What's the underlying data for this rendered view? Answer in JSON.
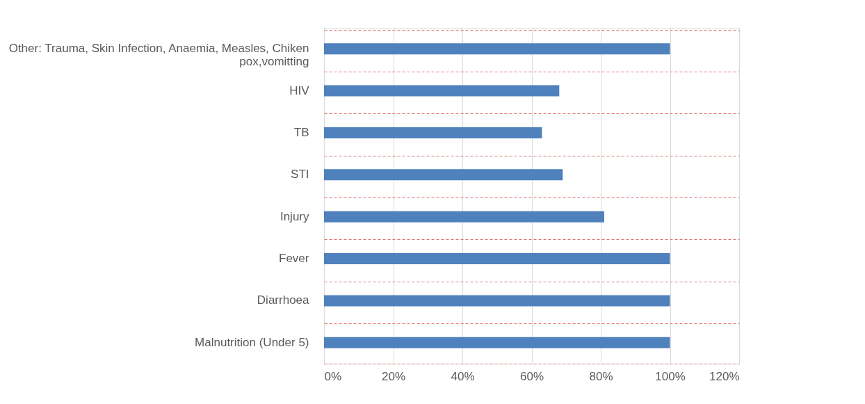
{
  "chart_data": {
    "type": "bar",
    "orientation": "horizontal",
    "categories": [
      "Other: Trauma, Skin Infection, Anaemia, Measles, Chiken pox,vomitting",
      "HIV",
      "TB",
      "STI",
      "Injury",
      "Fever",
      "Diarrhoea",
      "Malnutrition (Under 5)"
    ],
    "values": [
      100,
      68,
      63,
      69,
      81,
      100,
      100,
      100
    ],
    "color": "#4f81bd",
    "xlim": [
      0,
      120
    ],
    "xticks": [
      {
        "value": 0,
        "label": "0%"
      },
      {
        "value": 20,
        "label": "20%"
      },
      {
        "value": 40,
        "label": "40%"
      },
      {
        "value": 60,
        "label": "60%"
      },
      {
        "value": 80,
        "label": "80%"
      },
      {
        "value": 100,
        "label": "100%"
      },
      {
        "value": 120,
        "label": "120%"
      }
    ],
    "grid": true
  }
}
